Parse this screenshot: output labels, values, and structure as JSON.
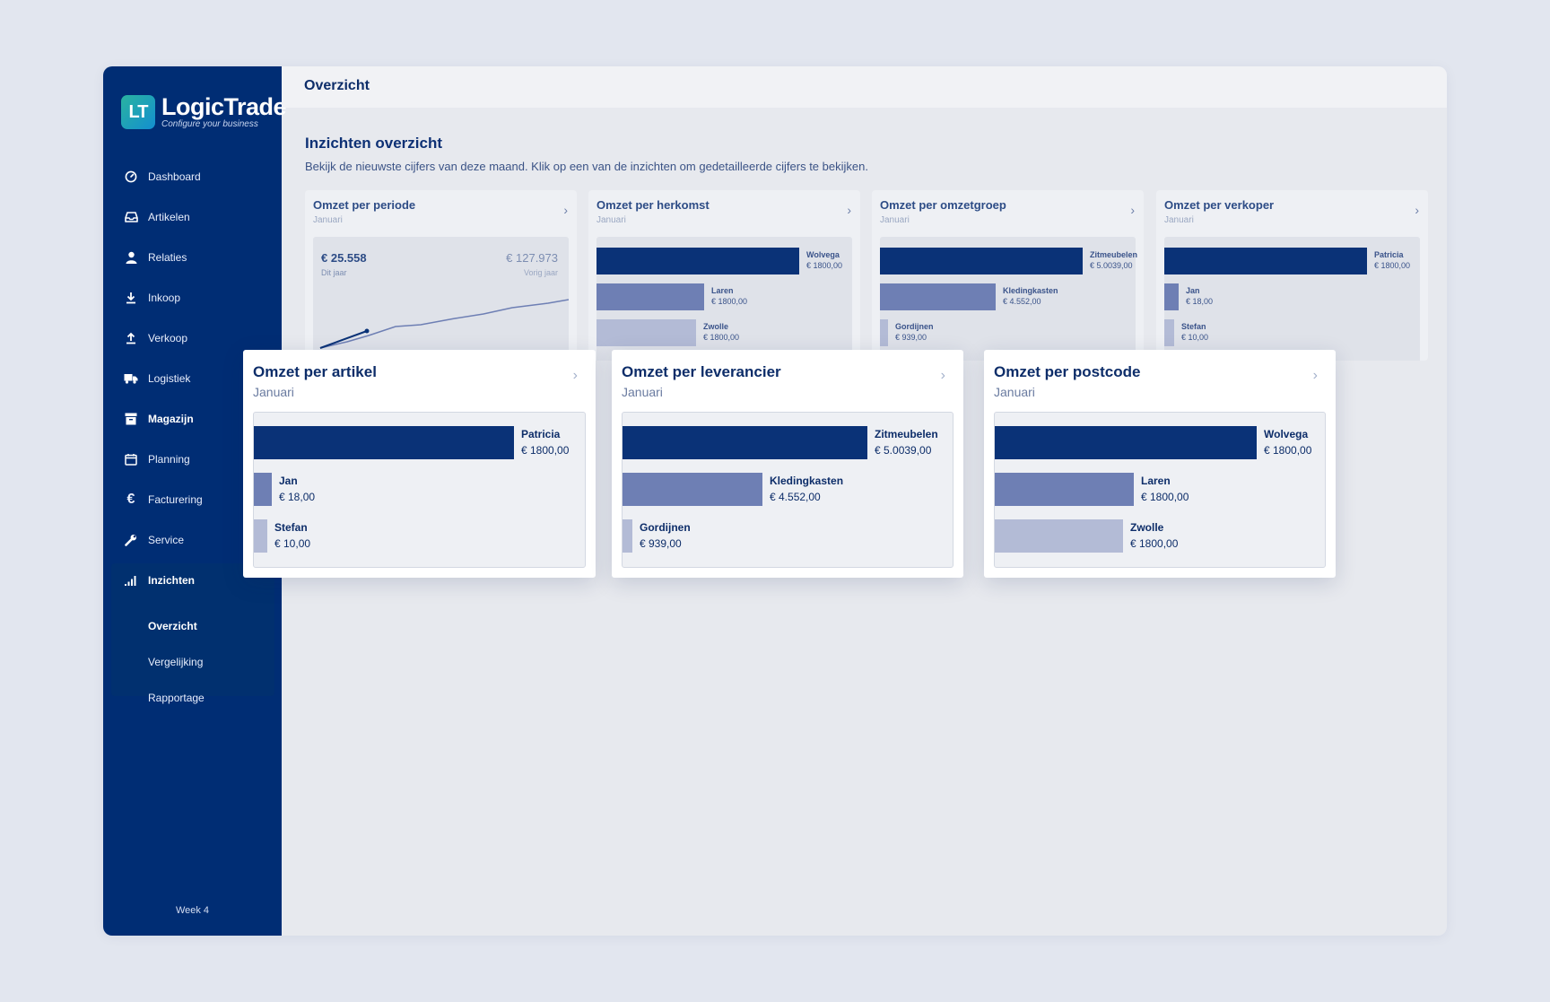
{
  "brand": {
    "mark": "LT",
    "name": "LogicTrade",
    "tagline": "Configure your business"
  },
  "sidebar": {
    "items": [
      {
        "label": "Dashboard",
        "icon": "dashboard-icon"
      },
      {
        "label": "Artikelen",
        "icon": "inbox-icon"
      },
      {
        "label": "Relaties",
        "icon": "user-icon"
      },
      {
        "label": "Inkoop",
        "icon": "download-icon"
      },
      {
        "label": "Verkoop",
        "icon": "upload-icon"
      },
      {
        "label": "Logistiek",
        "icon": "truck-icon"
      },
      {
        "label": "Magazijn",
        "icon": "archive-box-icon"
      },
      {
        "label": "Planning",
        "icon": "calendar-icon"
      },
      {
        "label": "Facturering",
        "icon": "euro-icon"
      },
      {
        "label": "Service",
        "icon": "wrench-icon"
      },
      {
        "label": "Inzichten",
        "icon": "bar-chart-icon"
      }
    ],
    "subitems": [
      "Overzicht",
      "Vergelijking",
      "Rapportage"
    ],
    "week": "Week 4"
  },
  "topbar": {
    "title": "Overzicht"
  },
  "page": {
    "title": "Inzichten overzicht",
    "description": "Bekijk de nieuwste cijfers van deze maand. Klik op een van de inzichten om gedetailleerde cijfers te bekijken."
  },
  "colors": {
    "sidebar": "#002d74",
    "bar1": "#0a3277",
    "bar2": "#6e7fb4",
    "bar3": "#b3bbd6",
    "background": "#e2e6ef"
  },
  "cards_background": [
    {
      "title": "Omzet per periode",
      "subtitle": "Januari",
      "type": "line",
      "value_current": "€ 25.558",
      "label_current": "Dit jaar",
      "value_previous": "€ 127.973",
      "label_previous": "Vorig jaar"
    },
    {
      "title": "Omzet per herkomst",
      "subtitle": "Januari",
      "bars": [
        {
          "name": "Wolvega",
          "value": "€ 1800,00",
          "share": 1.0
        },
        {
          "name": "Laren",
          "value": "€ 1800,00",
          "share": 0.53
        },
        {
          "name": "Zwolle",
          "value": "€ 1800,00",
          "share": 0.49
        }
      ]
    },
    {
      "title": "Omzet per omzetgroep",
      "subtitle": "Januari",
      "bars": [
        {
          "name": "Zitmeubelen",
          "value": "€ 5.0039,00",
          "share": 1.0
        },
        {
          "name": "Kledingkasten",
          "value": "€ 4.552,00",
          "share": 0.57
        },
        {
          "name": "Gordijnen",
          "value": "€ 939,00",
          "share": 0.04
        }
      ]
    },
    {
      "title": "Omzet per verkoper",
      "subtitle": "Januari",
      "bars": [
        {
          "name": "Patricia",
          "value": "€ 1800,00",
          "share": 1.0
        },
        {
          "name": "Jan",
          "value": "€ 18,00",
          "share": 0.07
        },
        {
          "name": "Stefan",
          "value": "€ 10,00",
          "share": 0.05
        }
      ]
    }
  ],
  "cards_popup": [
    {
      "title": "Omzet per artikel",
      "subtitle": "Januari",
      "bars": [
        {
          "name": "Patricia",
          "value": "€ 1800,00",
          "share": 1.0
        },
        {
          "name": "Jan",
          "value": "€ 18,00",
          "share": 0.07
        },
        {
          "name": "Stefan",
          "value": "€ 10,00",
          "share": 0.05
        }
      ]
    },
    {
      "title": "Omzet per leverancier",
      "subtitle": "Januari",
      "bars": [
        {
          "name": "Zitmeubelen",
          "value": "€ 5.0039,00",
          "share": 1.0
        },
        {
          "name": "Kledingkasten",
          "value": "€ 4.552,00",
          "share": 0.57
        },
        {
          "name": "Gordijnen",
          "value": "€ 939,00",
          "share": 0.04
        }
      ]
    },
    {
      "title": "Omzet per postcode",
      "subtitle": "Januari",
      "bars": [
        {
          "name": "Wolvega",
          "value": "€ 1800,00",
          "share": 1.0
        },
        {
          "name": "Laren",
          "value": "€ 1800,00",
          "share": 0.53
        },
        {
          "name": "Zwolle",
          "value": "€ 1800,00",
          "share": 0.49
        }
      ]
    }
  ]
}
